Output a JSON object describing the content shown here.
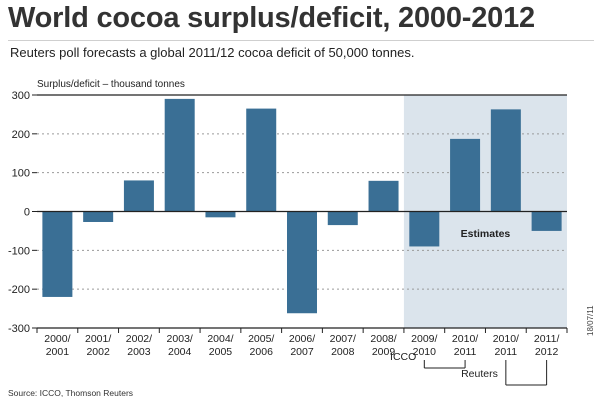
{
  "header": {
    "title": "World cocoa surplus/deficit, 2000-2012",
    "subtitle": "Reuters poll forecasts a global 2011/12 cocoa deficit of 50,000 tonnes."
  },
  "footer": {
    "source": "Source: ICCO, Thomson Reuters",
    "date_stamp": "18/07/11"
  },
  "chart_data": {
    "type": "bar",
    "title": "World cocoa surplus/deficit, 2000-2012",
    "ylabel": "Surplus/deficit – thousand tonnes",
    "xlabel": "",
    "ylim": [
      -300,
      300
    ],
    "yticks": [
      300,
      200,
      100,
      0,
      -100,
      -200,
      -300
    ],
    "grid": true,
    "bar_color": "#3a6f95",
    "categories": [
      [
        "2000/",
        "2001"
      ],
      [
        "2001/",
        "2002"
      ],
      [
        "2002/",
        "2003"
      ],
      [
        "2003/",
        "2004"
      ],
      [
        "2004/",
        "2005"
      ],
      [
        "2005/",
        "2006"
      ],
      [
        "2006/",
        "2007"
      ],
      [
        "2007/",
        "2008"
      ],
      [
        "2008/",
        "2009"
      ],
      [
        "2009/",
        "2010"
      ],
      [
        "2010/",
        "2011"
      ],
      [
        "2010/",
        "2011"
      ],
      [
        "2011/",
        "2012"
      ]
    ],
    "values": [
      -220,
      -27,
      80,
      290,
      -15,
      265,
      -262,
      -35,
      79,
      -90,
      187,
      263,
      -50
    ],
    "estimates": {
      "label": "Estimates",
      "start_index": 9,
      "end_index": 12,
      "color": "#dbe4ec"
    },
    "source_brackets": [
      {
        "label": "ICCO",
        "indices": [
          9,
          10
        ]
      },
      {
        "label": "Reuters",
        "indices": [
          11,
          12
        ]
      }
    ]
  }
}
